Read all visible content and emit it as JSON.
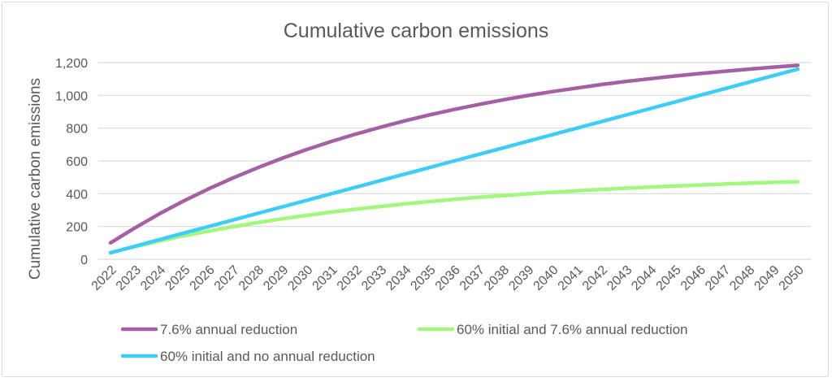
{
  "chart_data": {
    "type": "line",
    "title": "Cumulative carbon emissions",
    "xlabel": "",
    "ylabel": "Cumulative carbon emissions",
    "ylim": [
      0,
      1200
    ],
    "yticks": [
      0,
      200,
      400,
      600,
      800,
      1000,
      1200
    ],
    "ytick_labels": [
      "0",
      "200",
      "400",
      "600",
      "800",
      "1,000",
      "1,200"
    ],
    "grid": true,
    "legend_position": "bottom",
    "categories": [
      "2022",
      "2023",
      "2024",
      "2025",
      "2026",
      "2027",
      "2028",
      "2029",
      "2030",
      "2031",
      "2032",
      "2033",
      "2034",
      "2035",
      "2036",
      "2037",
      "2038",
      "2039",
      "2040",
      "2041",
      "2042",
      "2043",
      "2044",
      "2045",
      "2046",
      "2047",
      "2048",
      "2049",
      "2050"
    ],
    "series": [
      {
        "name": "7.6% annual reduction",
        "color": "#a55fa5",
        "values": [
          100,
          192,
          278,
          357,
          430,
          497,
          559,
          617,
          670,
          719,
          764,
          806,
          845,
          881,
          914,
          944,
          973,
          999,
          1023,
          1045,
          1066,
          1085,
          1102,
          1118,
          1133,
          1147,
          1160,
          1172,
          1183
        ]
      },
      {
        "name": "60% initial and 7.6% annual reduction",
        "color": "#a3f77f",
        "values": [
          40,
          77,
          111,
          143,
          172,
          199,
          224,
          247,
          268,
          288,
          306,
          322,
          338,
          352,
          366,
          378,
          389,
          399,
          409,
          418,
          426,
          434,
          441,
          447,
          453,
          459,
          464,
          469,
          473
        ]
      },
      {
        "name": "60% initial and no annual reduction",
        "color": "#3fcdf7",
        "values": [
          40,
          80,
          120,
          160,
          200,
          240,
          280,
          320,
          360,
          400,
          440,
          480,
          520,
          560,
          600,
          640,
          680,
          720,
          760,
          800,
          840,
          880,
          920,
          960,
          1000,
          1040,
          1080,
          1120,
          1160
        ]
      }
    ]
  }
}
